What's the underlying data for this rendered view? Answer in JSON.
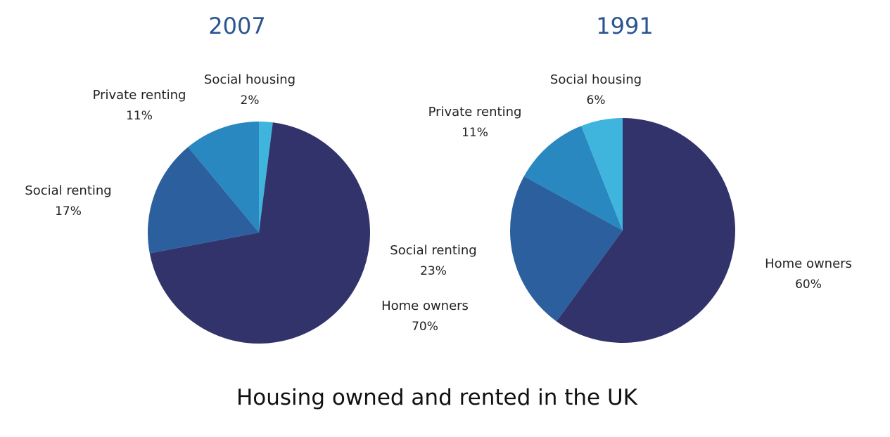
{
  "colors": {
    "home_owners": "#33336b",
    "social_renting": "#2c5f9e",
    "private_renting": "#2a88c0",
    "social_housing": "#3fb5dd",
    "pie_title": "#2a5591",
    "main_title": "#111111"
  },
  "chart_data": [
    {
      "type": "pie",
      "title": "2007",
      "slices": [
        {
          "key": "home_owners",
          "label": "Home owners",
          "value": 70,
          "value_label": "70%",
          "color": "#33336b"
        },
        {
          "key": "social_renting",
          "label": "Social renting",
          "value": 17,
          "value_label": "17%",
          "color": "#2c5f9e"
        },
        {
          "key": "private_renting",
          "label": "Private renting",
          "value": 11,
          "value_label": "11%",
          "color": "#2a88c0"
        },
        {
          "key": "social_housing",
          "label": "Social housing",
          "value": 2,
          "value_label": "2%",
          "color": "#3fb5dd"
        }
      ]
    },
    {
      "type": "pie",
      "title": "1991",
      "slices": [
        {
          "key": "home_owners",
          "label": "Home owners",
          "value": 60,
          "value_label": "60%",
          "color": "#33336b"
        },
        {
          "key": "social_renting",
          "label": "Social renting",
          "value": 23,
          "value_label": "23%",
          "color": "#2c5f9e"
        },
        {
          "key": "private_renting",
          "label": "Private renting",
          "value": 11,
          "value_label": "11%",
          "color": "#2a88c0"
        },
        {
          "key": "social_housing",
          "label": "Social housing",
          "value": 6,
          "value_label": "6%",
          "color": "#3fb5dd"
        }
      ]
    }
  ],
  "main_title": "Housing owned and rented in the UK"
}
